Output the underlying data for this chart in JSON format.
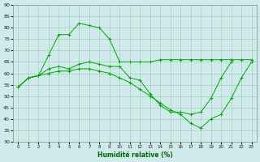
{
  "xlabel": "Humidité relative (%)",
  "xlim": [
    -0.5,
    23.5
  ],
  "ylim": [
    30,
    90
  ],
  "yticks": [
    30,
    35,
    40,
    45,
    50,
    55,
    60,
    65,
    70,
    75,
    80,
    85,
    90
  ],
  "xticks": [
    0,
    1,
    2,
    3,
    4,
    5,
    6,
    7,
    8,
    9,
    10,
    11,
    12,
    13,
    14,
    15,
    16,
    17,
    18,
    19,
    20,
    21,
    22,
    23
  ],
  "bg_color": "#ceeaea",
  "grid_color": "#aaccbb",
  "line_color": "#00aa00",
  "line1_x": [
    0,
    1,
    2,
    3,
    4,
    5,
    6,
    7,
    8,
    9,
    10,
    11,
    12,
    13,
    14,
    15,
    16,
    17,
    18,
    19,
    20,
    21,
    22,
    23
  ],
  "line1_y": [
    54,
    58,
    59,
    68,
    77,
    77,
    82,
    81,
    80,
    75,
    65,
    65,
    65,
    65,
    66,
    66,
    66,
    66,
    66,
    66,
    66,
    66,
    66,
    66
  ],
  "line2_x": [
    0,
    1,
    2,
    3,
    4,
    5,
    6,
    7,
    8,
    9,
    10,
    11,
    12,
    13,
    14,
    15,
    16,
    17,
    18,
    19,
    20,
    21,
    22,
    23
  ],
  "line2_y": [
    54,
    58,
    59,
    62,
    63,
    62,
    64,
    65,
    64,
    63,
    63,
    58,
    57,
    51,
    46,
    43,
    43,
    42,
    43,
    49,
    58,
    65,
    null,
    null
  ],
  "line3_x": [
    0,
    1,
    2,
    3,
    4,
    5,
    6,
    7,
    8,
    9,
    10,
    11,
    12,
    13,
    14,
    15,
    16,
    17,
    18,
    19,
    20,
    21,
    22,
    23
  ],
  "line3_y": [
    54,
    58,
    59,
    60,
    61,
    61,
    62,
    62,
    61,
    60,
    58,
    56,
    53,
    50,
    47,
    44,
    42,
    38,
    36,
    40,
    42,
    49,
    58,
    65
  ]
}
